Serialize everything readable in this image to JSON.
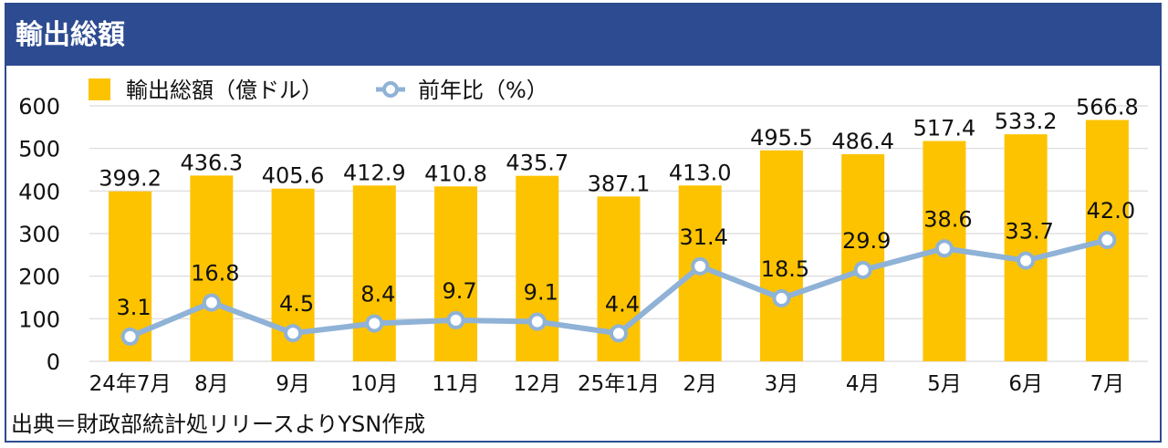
{
  "header": {
    "title": "輸出総額"
  },
  "chart_data": {
    "type": "bar",
    "categories": [
      "24年7月",
      "8月",
      "9月",
      "10月",
      "11月",
      "12月",
      "25年1月",
      "2月",
      "3月",
      "4月",
      "5月",
      "6月",
      "7月"
    ],
    "series": [
      {
        "name": "輸出総額（億ドル）",
        "type": "bar",
        "color": "#fdc300",
        "values": [
          399.2,
          436.3,
          405.6,
          412.9,
          410.8,
          435.7,
          387.1,
          413.0,
          495.5,
          486.4,
          517.4,
          533.2,
          566.8
        ],
        "labels": [
          "399.2",
          "436.3",
          "405.6",
          "412.9",
          "410.8",
          "435.7",
          "387.1",
          "413.0",
          "495.5",
          "486.4",
          "517.4",
          "533.2",
          "566.8"
        ]
      },
      {
        "name": "前年比（%）",
        "type": "line",
        "color": "#8fb2d6",
        "values": [
          3.1,
          16.8,
          4.5,
          8.4,
          9.7,
          9.1,
          4.4,
          31.4,
          18.5,
          29.9,
          38.6,
          33.7,
          42.0
        ],
        "labels": [
          "3.1",
          "16.8",
          "4.5",
          "8.4",
          "9.7",
          "9.1",
          "4.4",
          "31.4",
          "18.5",
          "29.9",
          "38.6",
          "33.7",
          "42.0"
        ]
      }
    ],
    "y_ticks": [
      "0",
      "100",
      "200",
      "300",
      "400",
      "500",
      "600"
    ],
    "ylim": [
      0,
      600
    ],
    "grid": true,
    "legend_position": "top-left"
  },
  "source": "出典＝財政部統計処リリースよりYSN作成"
}
